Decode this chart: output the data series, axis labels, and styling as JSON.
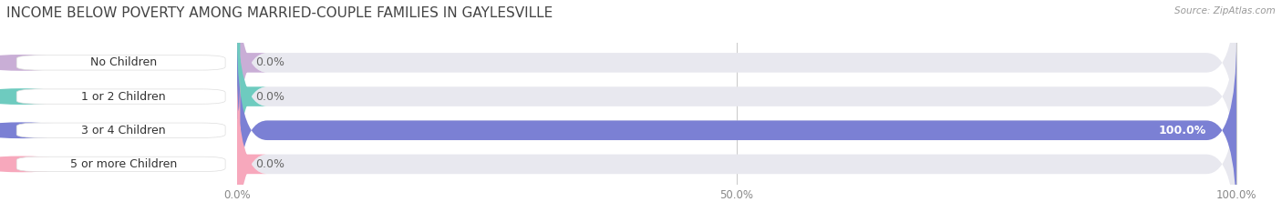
{
  "title": "INCOME BELOW POVERTY AMONG MARRIED-COUPLE FAMILIES IN GAYLESVILLE",
  "source": "Source: ZipAtlas.com",
  "categories": [
    "No Children",
    "1 or 2 Children",
    "3 or 4 Children",
    "5 or more Children"
  ],
  "values": [
    0.0,
    0.0,
    100.0,
    0.0
  ],
  "bar_colors": [
    "#c9aed6",
    "#6ecbbf",
    "#7b80d4",
    "#f7a8bc"
  ],
  "bg_color": "#ffffff",
  "bar_bg_color": "#e8e8ef",
  "xlim": [
    0,
    100
  ],
  "xticks": [
    0,
    50,
    100
  ],
  "xticklabels": [
    "0.0%",
    "50.0%",
    "100.0%"
  ],
  "label_fontsize": 9,
  "title_fontsize": 11,
  "value_label_color": "#666666",
  "label_box_color": "#ffffff",
  "label_text_color": "#333333"
}
